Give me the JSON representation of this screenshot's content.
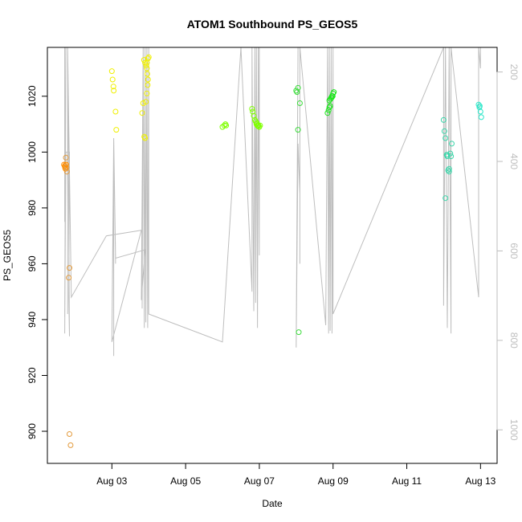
{
  "chart_data": {
    "type": "scatter",
    "title": "ATOM1 Southbound PS_GEOS5",
    "xlabel": "Date",
    "ylabel": "PS_GEOS5",
    "x_unit": "days",
    "xlim": [
      1.25,
      13.45
    ],
    "ylim": [
      888.5,
      1037.5
    ],
    "x_ticks": [
      {
        "value": 3.0,
        "label": "Aug 03"
      },
      {
        "value": 5.0,
        "label": "Aug 05"
      },
      {
        "value": 7.0,
        "label": "Aug 07"
      },
      {
        "value": 9.0,
        "label": "Aug 09"
      },
      {
        "value": 11.0,
        "label": "Aug 11"
      },
      {
        "value": 13.0,
        "label": "Aug 13"
      }
    ],
    "y_ticks": [
      900,
      920,
      940,
      960,
      980,
      1000,
      1020
    ],
    "right_axis": {
      "ylim": [
        1075,
        145
      ],
      "ticks": [
        200,
        400,
        600,
        800,
        1000
      ],
      "color": "#bebebe"
    },
    "background_trace": {
      "color": "#bebebe",
      "x": [
        1.72,
        1.72,
        1.75,
        1.72,
        1.75,
        1.72,
        1.75,
        1.85,
        1.83,
        1.85,
        1.8,
        1.8,
        1.8,
        1.9,
        2.85,
        3.8,
        3.0,
        3.05,
        3.0,
        3.05,
        3.05,
        3.05,
        3.1,
        3.05,
        3.1,
        3.9,
        3.8,
        3.85,
        3.82,
        3.85,
        3.88,
        3.9,
        3.92,
        3.95,
        3.97,
        4.0,
        4.0,
        6.0,
        6.5,
        6.8,
        6.8,
        6.85,
        6.88,
        6.9,
        6.92,
        6.95,
        6.97,
        7.0,
        7.0,
        8.05,
        8.0,
        8.05,
        8.1,
        8.1,
        8.1,
        8.1,
        8.8,
        8.85,
        8.88,
        8.9,
        8.92,
        8.95,
        8.97,
        9.0,
        9.0,
        12.0,
        12.0,
        12.05,
        12.1,
        12.15,
        12.2,
        12.2,
        12.95,
        12.95,
        13.0,
        13.0
      ],
      "y": [
        1037.5,
        975,
        1037.5,
        941,
        1037.5,
        935,
        1000,
        1000,
        948,
        934,
        1037.5,
        942,
        1037.5,
        948,
        970,
        972,
        932,
        995,
        932,
        1005,
        927,
        1005,
        960,
        1005,
        962,
        965,
        947,
        1037.5,
        944,
        1037.5,
        937,
        1037.5,
        939,
        1037.5,
        937,
        1037.5,
        942,
        932,
        1037.5,
        950,
        1037.5,
        943,
        1037.5,
        946,
        1037.5,
        937,
        1037.5,
        963,
        1037.5,
        1037.5,
        930,
        1003,
        985,
        1037.5,
        960,
        1037.5,
        938,
        1037.5,
        935,
        1037.5,
        936,
        1037.5,
        935,
        1037.5,
        942,
        1037.5,
        945,
        1037.5,
        937,
        1037.5,
        935,
        1037.5,
        948,
        1037.5,
        1030,
        1037.5
      ]
    },
    "series": [
      {
        "color": "#ff8c00",
        "x": [
          1.7,
          1.72,
          1.73,
          1.75,
          1.74,
          1.76
        ],
        "y": [
          995.5,
          995,
          994.5,
          995.5,
          994,
          995.5
        ]
      },
      {
        "color": "#e39a3c",
        "x": [
          1.75,
          1.78,
          1.77,
          1.85,
          1.83,
          1.85,
          1.88
        ],
        "y": [
          998,
          993,
          994.5,
          958.5,
          955,
          899,
          895
        ]
      },
      {
        "color": "#f0f000",
        "x": [
          3.0,
          3.02,
          3.04,
          3.05,
          3.1,
          3.12,
          3.88,
          3.9,
          3.92,
          3.95,
          3.97,
          3.98,
          3.85,
          3.82,
          3.87,
          3.9,
          3.93,
          3.95,
          3.96,
          4.0,
          3.98,
          3.95
        ],
        "y": [
          1029,
          1026,
          1023.5,
          1022,
          1014.5,
          1008,
          1005.5,
          1005,
          1018,
          1021,
          1024,
          1026,
          1017.5,
          1014,
          1033,
          1032,
          1031,
          1030,
          1028,
          1034,
          1033.5,
          1032
        ]
      },
      {
        "color": "#7fff00",
        "x": [
          6.0,
          6.05,
          6.08,
          6.1,
          6.8,
          6.82,
          6.85,
          6.88,
          6.9,
          6.92,
          6.95,
          6.98,
          7.0,
          7.02,
          6.96,
          6.93
        ],
        "y": [
          1009,
          1009.5,
          1010,
          1009.5,
          1015.5,
          1014.5,
          1013,
          1011.5,
          1011,
          1010,
          1009.5,
          1009.5,
          1009,
          1009.5,
          1009.3,
          1010.5
        ]
      },
      {
        "color": "#3cdc3c",
        "x": [
          8.0,
          8.02,
          8.05,
          8.1,
          8.05,
          8.07
        ],
        "y": [
          1022,
          1021.5,
          1023,
          1017.5,
          1008,
          935.5
        ]
      },
      {
        "color": "#19e619",
        "x": [
          8.85,
          8.88,
          8.9,
          8.92,
          8.95,
          8.97,
          9.0,
          9.02,
          8.9,
          8.93,
          8.96,
          8.99
        ],
        "y": [
          1014,
          1015,
          1016,
          1016.5,
          1019.5,
          1020,
          1021,
          1021.5,
          1018.5,
          1019,
          1019.5,
          1020
        ]
      },
      {
        "color": "#3cd6aa",
        "x": [
          12.0,
          12.02,
          12.05,
          12.08,
          12.1,
          12.12,
          12.15,
          12.18,
          12.2,
          12.22,
          12.05,
          12.1,
          12.15
        ],
        "y": [
          1011.5,
          1007.5,
          1005,
          999,
          998.5,
          993.5,
          994,
          999.5,
          998.5,
          1003,
          983.5,
          999,
          993
        ]
      },
      {
        "color": "#28e6c8",
        "x": [
          12.95,
          12.97,
          13.0,
          13.02,
          12.98
        ],
        "y": [
          1017,
          1016,
          1014.5,
          1012.5,
          1016.5
        ]
      }
    ]
  }
}
